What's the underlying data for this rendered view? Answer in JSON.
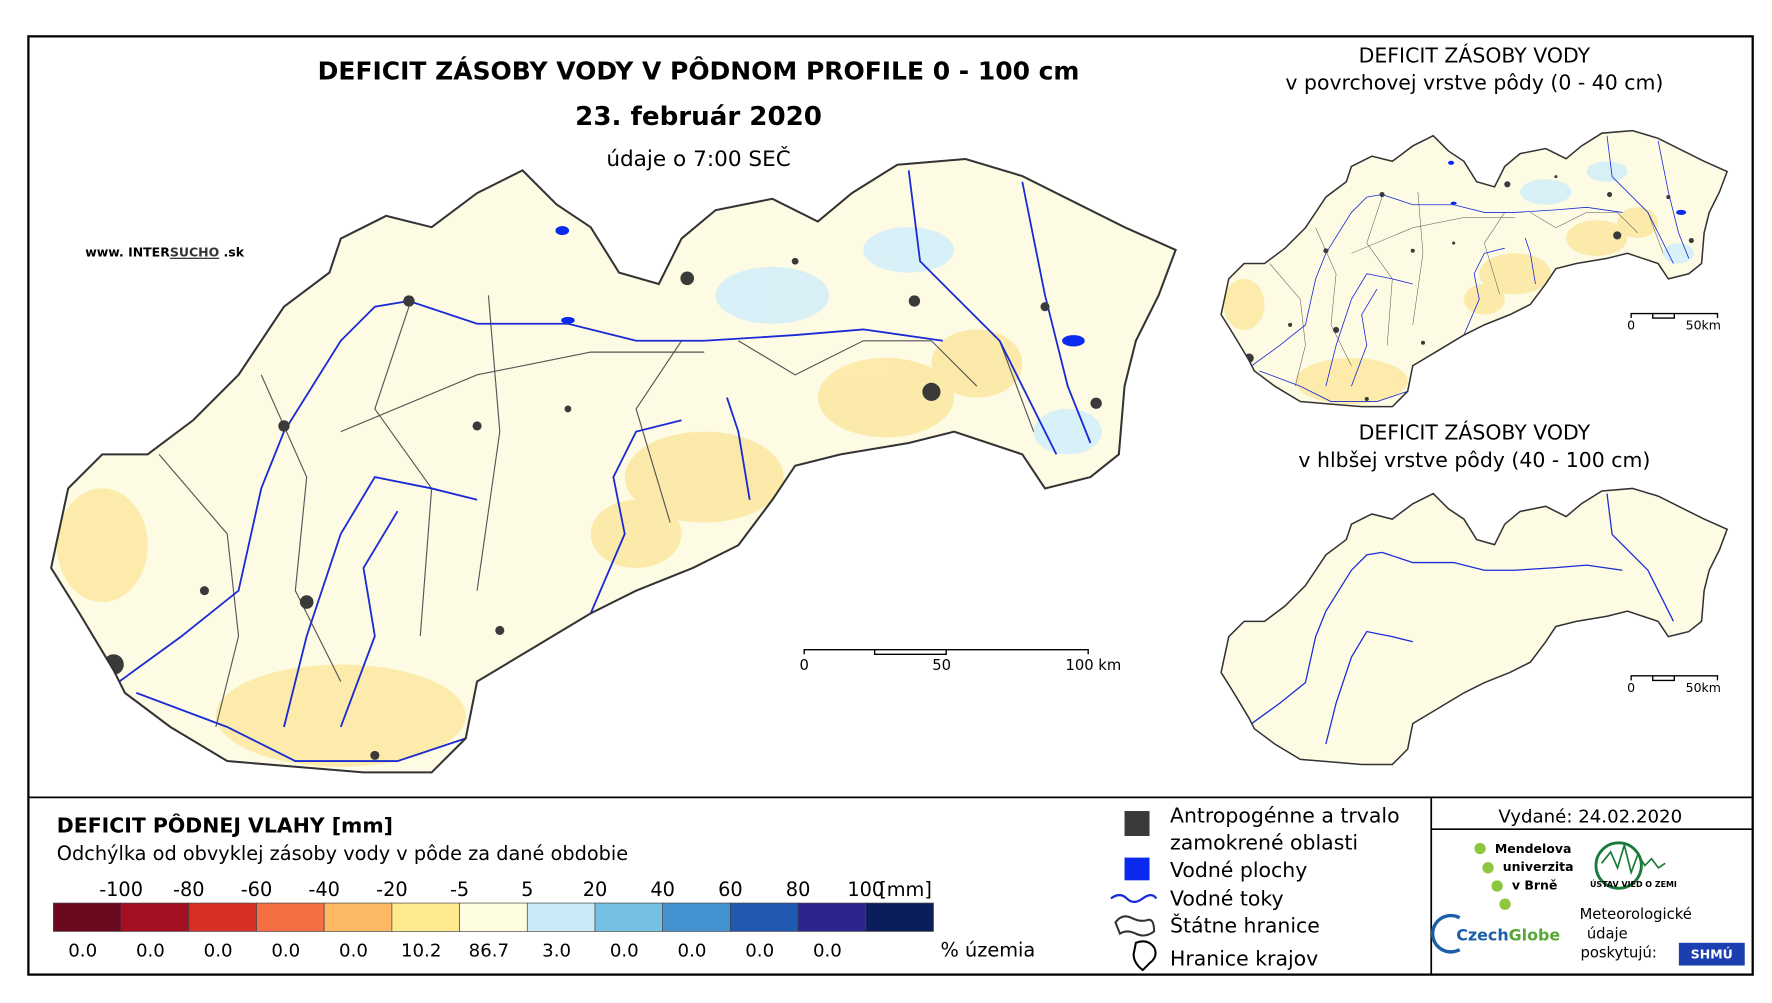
{
  "header": {
    "title": "DEFICIT ZÁSOBY VODY V PÔDNOM PROFILE 0 - 100 cm",
    "date": "23. február 2020",
    "time": "údaje o 7:00 SEČ",
    "website": [
      "www. INTER",
      "SUCHO",
      " .sk"
    ]
  },
  "main_scale": [
    "0",
    "50",
    "100 km"
  ],
  "insets": [
    {
      "title": "DEFICIT ZÁSOBY VODY",
      "subtitle": "v povrchovej vrstve pôdy (0 - 40 cm)",
      "scale": [
        "0",
        "50km"
      ]
    },
    {
      "title": "DEFICIT ZÁSOBY VODY",
      "subtitle": "v hlbšej vrstve pôdy (40 - 100 cm)",
      "scale": [
        "0",
        "50km"
      ]
    }
  ],
  "legend": {
    "title": "DEFICIT PÔDNEJ VLAHY [mm]",
    "subtitle": "Odchýlka od obvyklej zásoby vody v pôde za dané obdobie",
    "ticks": [
      -100,
      -80,
      -60,
      -40,
      -20,
      -5,
      5,
      20,
      40,
      60,
      80,
      100
    ],
    "unit": "[mm]",
    "colors": [
      "#6b0a1e",
      "#a50f24",
      "#d73027",
      "#f46d43",
      "#fdb863",
      "#fee98f",
      "#fefde0",
      "#c9e9f6",
      "#74c1e4",
      "#4393d0",
      "#2158b0",
      "#2c2590",
      "#0b1d5a"
    ],
    "percents": [
      "0.0",
      "0.0",
      "0.0",
      "0.0",
      "0.0",
      "10.2",
      "86.7",
      "3.0",
      "0.0",
      "0.0",
      "0.0",
      "0.0"
    ],
    "percent_label": "% územia"
  },
  "features": [
    {
      "lines": [
        "Antropogénne a trvalo",
        "zamokrené oblasti"
      ]
    },
    {
      "lines": [
        "Vodné plochy"
      ]
    },
    {
      "lines": [
        "Vodné toky"
      ]
    },
    {
      "lines": [
        "Štátne hranice"
      ]
    },
    {
      "lines": [
        "Hranice krajov"
      ]
    }
  ],
  "issued": "Vydané: 24.02.2020",
  "logos": {
    "mendel": [
      "Mendelova",
      "univerzita",
      "v Brně"
    ],
    "ustav": "ÚSTAV VIED O ZEMI",
    "czechglobe": [
      "Czech",
      "Globe"
    ],
    "meteo": [
      "Meteorologické",
      "údaje",
      "poskytujú:"
    ],
    "shmu": "SHMÚ"
  }
}
